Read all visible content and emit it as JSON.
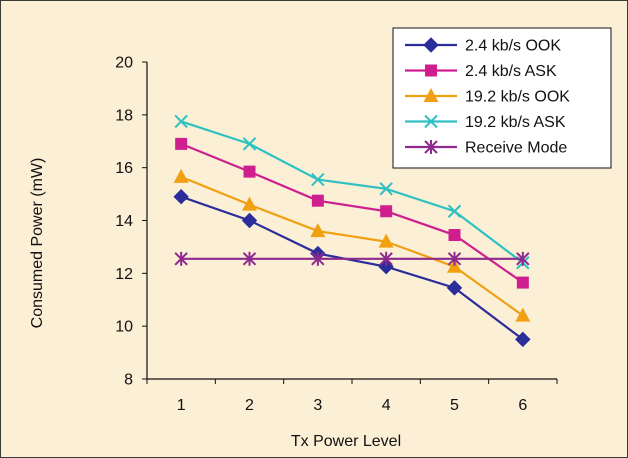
{
  "chart_data": {
    "type": "line",
    "title": "",
    "xlabel": "Tx Power Level",
    "ylabel": "Consumed Power (mW)",
    "x": [
      1,
      2,
      3,
      4,
      5,
      6
    ],
    "xlim": [
      0.5,
      6.5
    ],
    "ylim": [
      8,
      20
    ],
    "yticks": [
      8,
      10,
      12,
      14,
      16,
      18,
      20
    ],
    "grid": false,
    "legend_position": "top-right",
    "series": [
      {
        "name": "2.4 kb/s OOK",
        "color": "#2b2d9a",
        "marker": "diamond",
        "values": [
          14.9,
          14.0,
          12.75,
          12.25,
          11.45,
          9.5
        ]
      },
      {
        "name": "2.4 kb/s ASK",
        "color": "#cf1f8f",
        "marker": "square",
        "values": [
          16.9,
          15.85,
          14.75,
          14.35,
          13.45,
          11.65
        ]
      },
      {
        "name": "19.2 kb/s OOK",
        "color": "#f0a010",
        "marker": "triangle",
        "values": [
          15.65,
          14.6,
          13.6,
          13.2,
          12.25,
          10.4
        ]
      },
      {
        "name": "19.2 kb/s ASK",
        "color": "#2fc1c1",
        "marker": "x",
        "values": [
          17.75,
          16.9,
          15.55,
          15.2,
          14.35,
          12.4
        ]
      },
      {
        "name": "Receive Mode",
        "color": "#8e2a8e",
        "marker": "star",
        "values": [
          12.55,
          12.55,
          12.55,
          12.55,
          12.55,
          12.55
        ]
      }
    ]
  }
}
